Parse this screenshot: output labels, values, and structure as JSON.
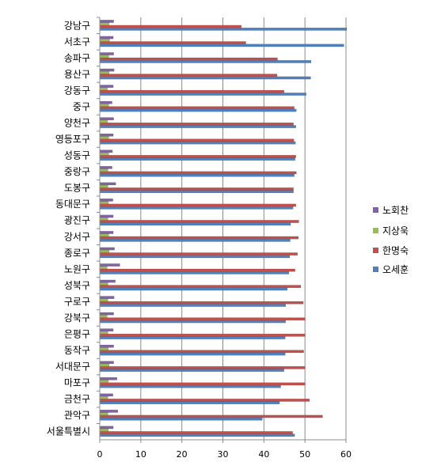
{
  "chart_data": {
    "type": "bar",
    "orientation": "horizontal",
    "title": "",
    "xlabel": "",
    "ylabel": "",
    "xlim": [
      0,
      60
    ],
    "xticks": [
      "0",
      "10",
      "20",
      "30",
      "40",
      "50",
      "60"
    ],
    "grid": true,
    "legend_position": "right",
    "categories": [
      "강남구",
      "서초구",
      "송파구",
      "용산구",
      "강동구",
      "중구",
      "양천구",
      "영등포구",
      "성동구",
      "중랑구",
      "도봉구",
      "동대문구",
      "광진구",
      "강서구",
      "종로구",
      "노원구",
      "성북구",
      "구로구",
      "강북구",
      "은평구",
      "동작구",
      "서대문구",
      "마포구",
      "금천구",
      "관악구",
      "서울특별시"
    ],
    "series": [
      {
        "name": "오세훈",
        "color": "#4f81bd",
        "values": [
          60.2,
          59.5,
          51.5,
          51.4,
          50.3,
          47.9,
          47.8,
          47.7,
          47.6,
          47.4,
          47.2,
          47.1,
          46.5,
          46.4,
          46.3,
          46.1,
          45.7,
          45.3,
          45.3,
          45.2,
          45.2,
          44.9,
          44.1,
          43.8,
          39.6,
          47.5
        ]
      },
      {
        "name": "한명숙",
        "color": "#c0504d",
        "values": [
          34.5,
          35.6,
          43.3,
          43.2,
          44.9,
          47.4,
          47.2,
          47.3,
          47.8,
          47.9,
          47.2,
          47.8,
          48.5,
          48.4,
          48.2,
          47.6,
          49.0,
          49.6,
          50.0,
          50.0,
          49.7,
          50.0,
          50.0,
          51.1,
          54.3,
          47.0
        ]
      },
      {
        "name": "지상욱",
        "color": "#9bbb59",
        "values": [
          2.3,
          2.4,
          2.2,
          2.3,
          1.9,
          2.2,
          1.9,
          2.2,
          2.2,
          2.0,
          2.0,
          2.1,
          2.0,
          2.2,
          2.3,
          1.8,
          2.0,
          2.0,
          1.8,
          2.0,
          2.1,
          2.3,
          2.1,
          2.0,
          2.0,
          2.1
        ]
      },
      {
        "name": "노회찬",
        "color": "#8064a2",
        "values": [
          3.4,
          3.3,
          3.4,
          3.5,
          3.3,
          3.0,
          3.4,
          3.3,
          3.1,
          3.0,
          3.9,
          3.2,
          3.3,
          3.3,
          3.6,
          4.9,
          3.8,
          3.5,
          3.4,
          3.3,
          3.4,
          3.4,
          4.2,
          3.2,
          4.4,
          3.3
        ]
      }
    ]
  }
}
